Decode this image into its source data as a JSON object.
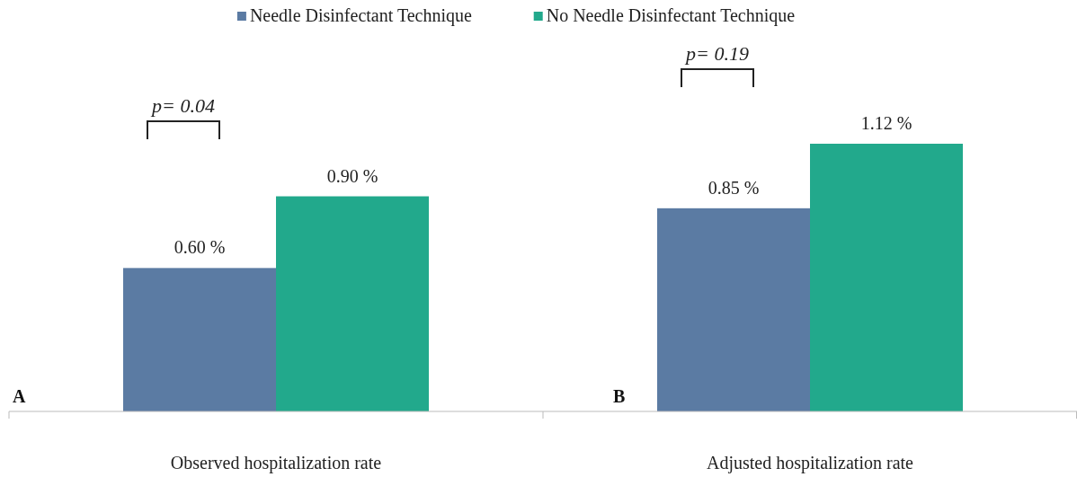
{
  "chart_data": {
    "type": "bar",
    "categories": [
      "Observed hospitalization rate",
      "Adjusted hospitalization rate"
    ],
    "series": [
      {
        "name": "Needle Disinfectant Technique",
        "color": "#5b7ba3",
        "values": [
          0.6,
          0.85
        ],
        "value_labels": [
          "0.60 %",
          "0.85 %"
        ]
      },
      {
        "name": "No Needle Disinfectant Technique",
        "color": "#22a98c",
        "values": [
          0.9,
          1.12
        ],
        "value_labels": [
          "0.90 %",
          "1.12 %"
        ]
      }
    ],
    "legend": "top",
    "annotations": [
      "A",
      "B",
      "p= 0.04",
      "p= 0.19"
    ]
  }
}
